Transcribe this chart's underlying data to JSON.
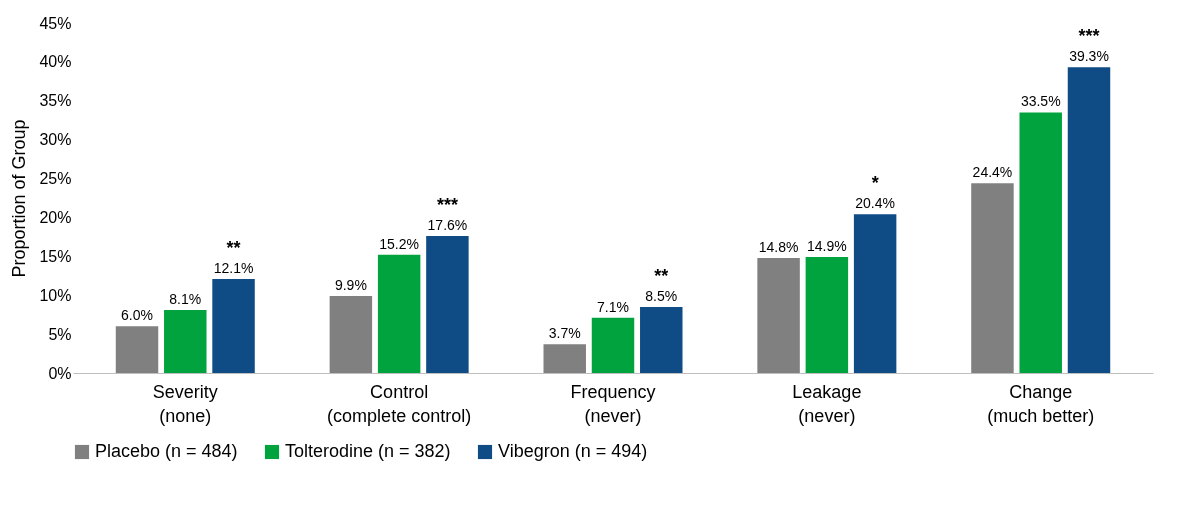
{
  "chart_data": {
    "type": "bar",
    "ylabel": "Proportion of Group",
    "categories": [
      "Severity\n(none)",
      "Control\n(complete control)",
      "Frequency\n(never)",
      "Leakage\n(never)",
      "Change\n(much better)"
    ],
    "series": [
      {
        "name": "Placebo (n = 484)",
        "color": "#808080",
        "values": [
          6.0,
          9.9,
          3.7,
          14.8,
          24.4
        ],
        "value_labels": [
          "6.0%",
          "9.9%",
          "3.7%",
          "14.8%",
          "24.4%"
        ]
      },
      {
        "name": "Tolterodine (n = 382)",
        "color": "#00a33d",
        "values": [
          8.1,
          15.2,
          7.1,
          14.9,
          33.5
        ],
        "value_labels": [
          "8.1%",
          "15.2%",
          "7.1%",
          "14.9%",
          "33.5%"
        ]
      },
      {
        "name": "Vibegron (n = 494)",
        "color": "#0f4c86",
        "values": [
          12.1,
          17.6,
          8.5,
          20.4,
          39.3
        ],
        "value_labels": [
          "12.1%",
          "17.6%",
          "8.5%",
          "20.4%",
          "39.3%"
        ]
      }
    ],
    "ylim": [
      0,
      45
    ],
    "yticks": [
      {
        "value": 0,
        "label": "0%"
      },
      {
        "value": 5,
        "label": "5%"
      },
      {
        "value": 10,
        "label": "10%"
      },
      {
        "value": 15,
        "label": "15%"
      },
      {
        "value": 20,
        "label": "20%"
      },
      {
        "value": 25,
        "label": "25%"
      },
      {
        "value": 30,
        "label": "30%"
      },
      {
        "value": 35,
        "label": "35%"
      },
      {
        "value": 40,
        "label": "40%"
      },
      {
        "value": 45,
        "label": "45%"
      }
    ],
    "annotations": [
      "**",
      "***",
      "**",
      "*",
      "***"
    ],
    "grid": false,
    "legend": "bottom"
  }
}
